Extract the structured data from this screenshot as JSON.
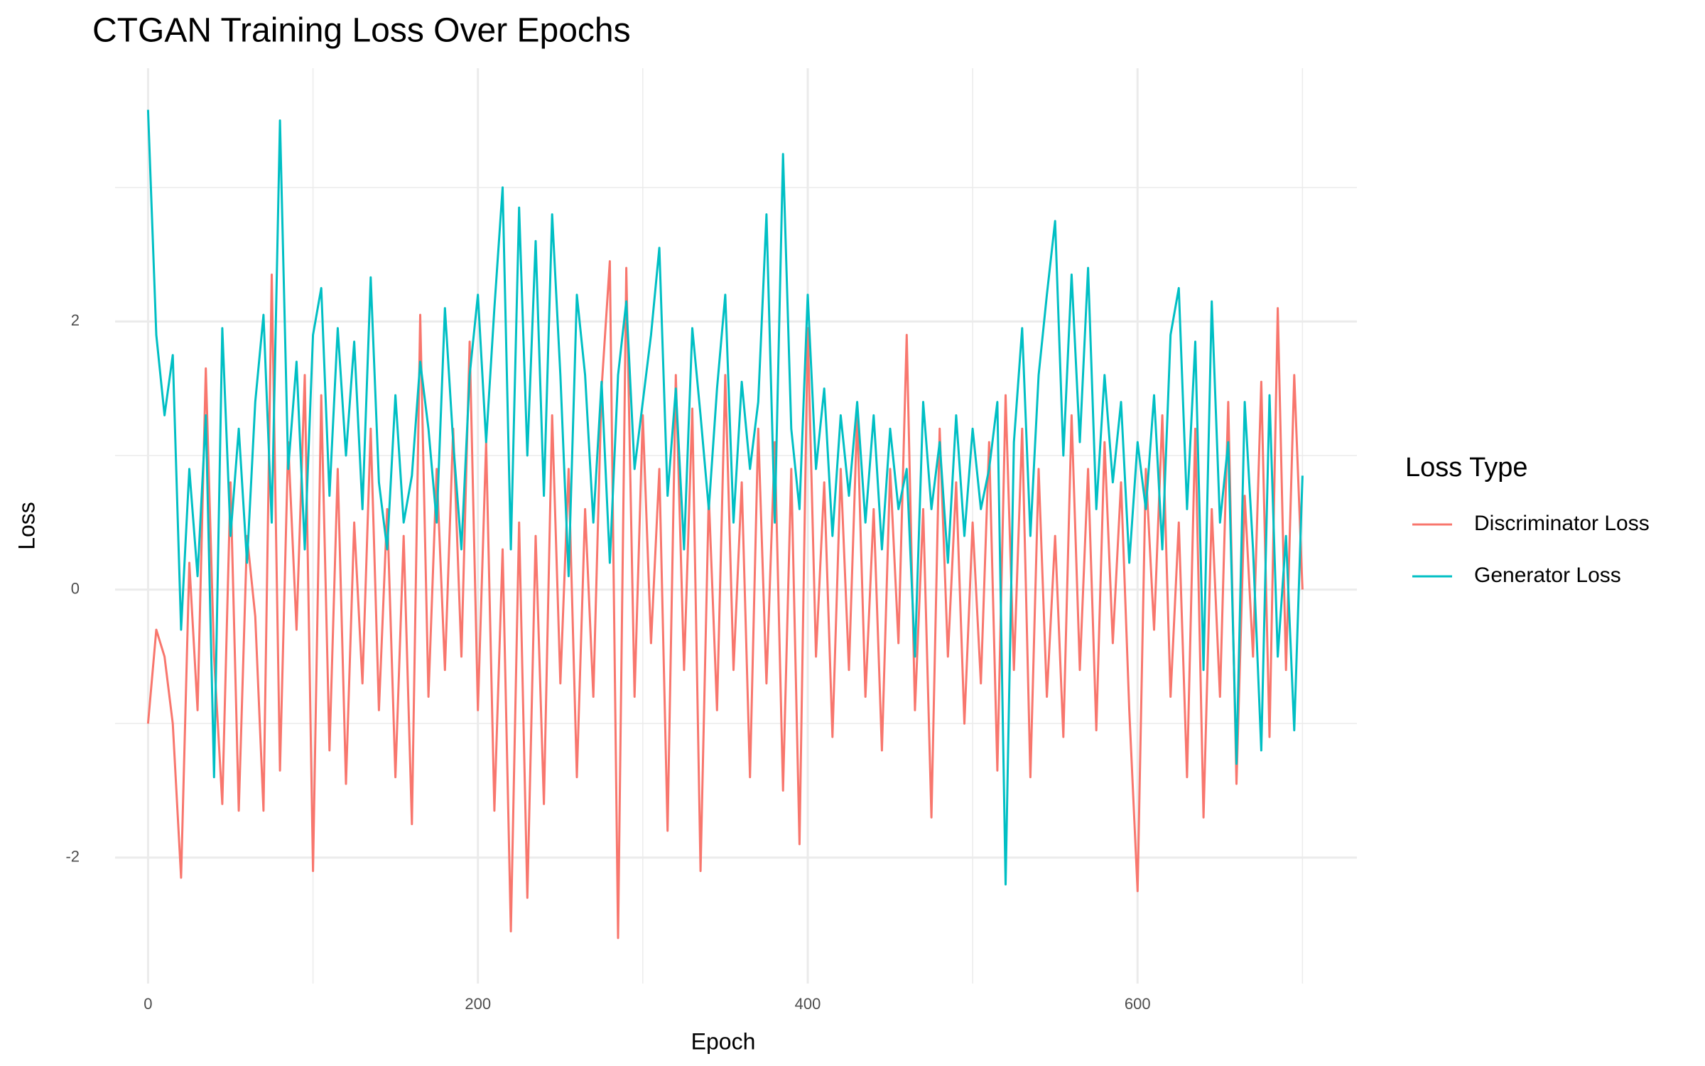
{
  "chart_data": {
    "type": "line",
    "title": "CTGAN Training Loss Over Epochs",
    "x_label": "Epoch",
    "y_label": "Loss",
    "legend_title": "Loss Type",
    "legend_position": "right",
    "grid": true,
    "xlim": [
      -20,
      733
    ],
    "ylim": [
      -2.94,
      3.89
    ],
    "xticks": [
      0,
      200,
      400,
      600
    ],
    "yticks": [
      -2,
      0,
      2
    ],
    "x": [
      0,
      5,
      10,
      15,
      20,
      25,
      30,
      35,
      40,
      45,
      50,
      55,
      60,
      65,
      70,
      75,
      80,
      85,
      90,
      95,
      100,
      105,
      110,
      115,
      120,
      125,
      130,
      135,
      140,
      145,
      150,
      155,
      160,
      165,
      170,
      175,
      180,
      185,
      190,
      195,
      200,
      205,
      210,
      215,
      220,
      225,
      230,
      235,
      240,
      245,
      250,
      255,
      260,
      265,
      270,
      275,
      280,
      285,
      290,
      295,
      300,
      305,
      310,
      315,
      320,
      325,
      330,
      335,
      340,
      345,
      350,
      355,
      360,
      365,
      370,
      375,
      380,
      385,
      390,
      395,
      400,
      405,
      410,
      415,
      420,
      425,
      430,
      435,
      440,
      445,
      450,
      455,
      460,
      465,
      470,
      475,
      480,
      485,
      490,
      495,
      500,
      505,
      510,
      515,
      520,
      525,
      530,
      535,
      540,
      545,
      550,
      555,
      560,
      565,
      570,
      575,
      580,
      585,
      590,
      595,
      600,
      605,
      610,
      615,
      620,
      625,
      630,
      635,
      640,
      645,
      650,
      655,
      660,
      665,
      670,
      675,
      680,
      685,
      690,
      695,
      700
    ],
    "series": [
      {
        "name": "Discriminator Loss",
        "color": "#F8766D",
        "values": [
          -1.0,
          -0.3,
          -0.5,
          -1.0,
          -2.15,
          0.2,
          -0.9,
          1.65,
          -0.5,
          -1.6,
          0.8,
          -1.65,
          0.4,
          -0.2,
          -1.65,
          2.35,
          -1.35,
          1.1,
          -0.3,
          1.6,
          -2.1,
          1.45,
          -1.2,
          0.9,
          -1.45,
          0.5,
          -0.7,
          1.2,
          -0.9,
          0.6,
          -1.4,
          0.4,
          -1.75,
          2.05,
          -0.8,
          0.9,
          -0.6,
          1.2,
          -0.5,
          1.85,
          -0.9,
          1.1,
          -1.65,
          0.3,
          -2.55,
          0.5,
          -2.3,
          0.4,
          -1.6,
          1.3,
          -0.7,
          0.9,
          -1.4,
          0.6,
          -0.8,
          1.5,
          2.45,
          -2.6,
          2.4,
          -0.8,
          1.3,
          -0.4,
          0.9,
          -1.8,
          1.6,
          -0.6,
          1.35,
          -2.1,
          0.7,
          -0.9,
          1.6,
          -0.6,
          0.8,
          -1.4,
          1.2,
          -0.7,
          1.1,
          -1.5,
          0.9,
          -1.9,
          1.95,
          -0.5,
          0.8,
          -1.1,
          0.9,
          -0.6,
          1.3,
          -0.8,
          0.6,
          -1.2,
          0.9,
          -0.4,
          1.9,
          -0.9,
          0.6,
          -1.7,
          1.2,
          -0.5,
          0.8,
          -1.0,
          0.5,
          -0.7,
          1.1,
          -1.35,
          1.45,
          -0.6,
          1.2,
          -1.4,
          0.9,
          -0.8,
          0.4,
          -1.1,
          1.3,
          -0.6,
          0.9,
          -1.05,
          1.1,
          -0.4,
          0.8,
          -0.9,
          -2.25,
          0.9,
          -0.3,
          1.3,
          -0.8,
          0.5,
          -1.4,
          1.2,
          -1.7,
          0.6,
          -0.8,
          1.4,
          -1.45,
          0.7,
          -0.5,
          1.55,
          -1.1,
          2.1,
          -0.6,
          1.6,
          0.0
        ]
      },
      {
        "name": "Generator Loss",
        "color": "#00BFC4",
        "values": [
          3.58,
          1.9,
          1.3,
          1.75,
          -0.3,
          0.9,
          0.1,
          1.3,
          -1.4,
          1.95,
          0.4,
          1.2,
          0.2,
          1.4,
          2.05,
          0.5,
          3.5,
          0.9,
          1.7,
          0.3,
          1.9,
          2.25,
          0.7,
          1.95,
          1.0,
          1.85,
          0.6,
          2.33,
          0.8,
          0.3,
          1.45,
          0.5,
          0.85,
          1.7,
          1.2,
          0.5,
          2.1,
          1.1,
          0.3,
          1.6,
          2.2,
          1.1,
          2.1,
          3.0,
          0.3,
          2.85,
          1.0,
          2.6,
          0.7,
          2.8,
          1.6,
          0.1,
          2.2,
          1.6,
          0.5,
          1.55,
          0.2,
          1.6,
          2.15,
          0.9,
          1.4,
          1.9,
          2.55,
          0.7,
          1.5,
          0.3,
          1.95,
          1.3,
          0.6,
          1.5,
          2.2,
          0.5,
          1.55,
          0.9,
          1.4,
          2.8,
          0.5,
          3.25,
          1.2,
          0.6,
          2.2,
          0.9,
          1.5,
          0.4,
          1.3,
          0.7,
          1.4,
          0.5,
          1.3,
          0.3,
          1.2,
          0.6,
          0.9,
          -0.5,
          1.4,
          0.6,
          1.1,
          0.2,
          1.3,
          0.4,
          1.2,
          0.6,
          0.9,
          1.4,
          -2.2,
          1.1,
          1.95,
          0.4,
          1.6,
          2.2,
          2.75,
          1.0,
          2.35,
          1.1,
          2.4,
          0.6,
          1.6,
          0.8,
          1.4,
          0.2,
          1.1,
          0.6,
          1.45,
          0.3,
          1.9,
          2.25,
          0.6,
          1.85,
          -0.6,
          2.15,
          0.5,
          1.1,
          -1.3,
          1.4,
          0.3,
          -1.2,
          1.45,
          -0.5,
          0.4,
          -1.05,
          0.85
        ]
      }
    ]
  }
}
